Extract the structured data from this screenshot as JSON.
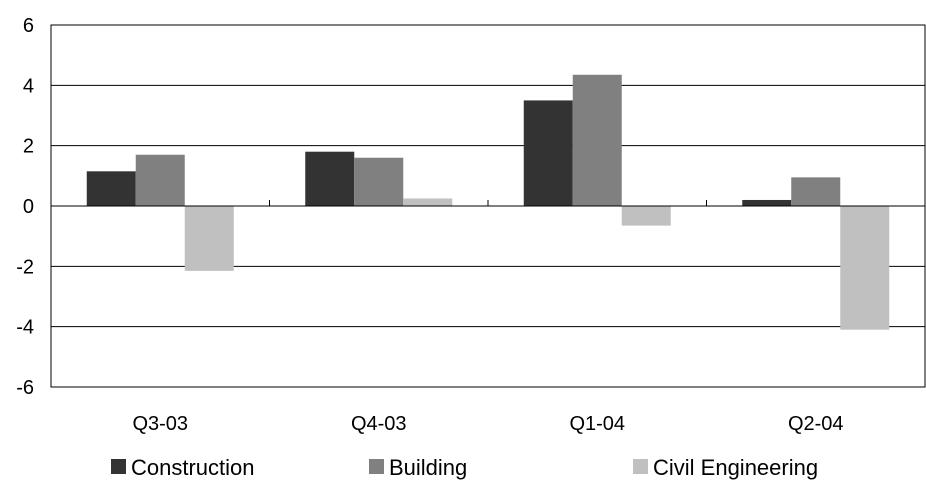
{
  "chart_data": {
    "type": "bar",
    "title": "",
    "xlabel": "",
    "ylabel": "",
    "ylim": [
      -6,
      6
    ],
    "yticks": [
      6,
      4,
      2,
      0,
      -2,
      -4,
      -6
    ],
    "ytick_labels": [
      "6",
      "4",
      "2",
      "0",
      "-2",
      "-4",
      "-6"
    ],
    "grid": true,
    "legend_position": "bottom",
    "categories": [
      "Q3-03",
      "Q4-03",
      "Q1-04",
      "Q2-04"
    ],
    "series": [
      {
        "name": "Construction",
        "color": "#333333",
        "values": [
          1.15,
          1.8,
          3.5,
          0.2
        ]
      },
      {
        "name": "Building",
        "color": "#808080",
        "values": [
          1.7,
          1.6,
          4.35,
          0.95
        ]
      },
      {
        "name": "Civil Engineering",
        "color": "#c0c0c0",
        "values": [
          -2.15,
          0.25,
          -0.65,
          -4.1
        ]
      }
    ]
  }
}
